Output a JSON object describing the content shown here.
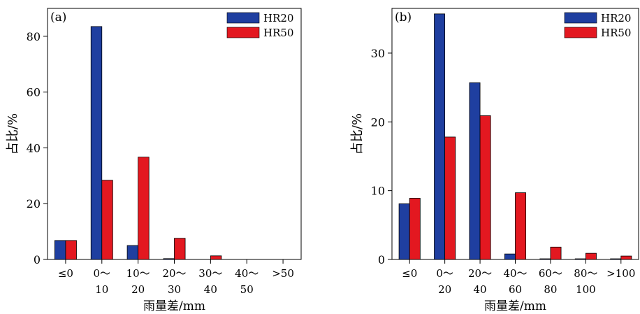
{
  "colors": {
    "HR20": "#1f3fa0",
    "HR50": "#e31820",
    "axis": "#000000"
  },
  "chart_data": [
    {
      "type": "bar",
      "panel_label": "(a)",
      "categories": [
        {
          "line1": "≤0",
          "line2": ""
        },
        {
          "line1": "0～",
          "line2": "10"
        },
        {
          "line1": "10～",
          "line2": "20"
        },
        {
          "line1": "20～",
          "line2": "30"
        },
        {
          "line1": "30～",
          "line2": "40"
        },
        {
          "line1": "40～",
          "line2": "50"
        },
        {
          "line1": ">50",
          "line2": ""
        }
      ],
      "series": [
        {
          "name": "HR20",
          "values": [
            6.8,
            83.5,
            5.0,
            0.3,
            0,
            0,
            0
          ]
        },
        {
          "name": "HR50",
          "values": [
            6.8,
            28.4,
            36.7,
            7.6,
            1.3,
            0,
            0
          ]
        }
      ],
      "xlabel": "雨量差/mm",
      "ylabel": "占比/%",
      "ylim": [
        0,
        90
      ],
      "yticks": [
        0,
        20,
        40,
        60,
        80
      ],
      "grid": false,
      "legend": "top-right"
    },
    {
      "type": "bar",
      "panel_label": "(b)",
      "categories": [
        {
          "line1": "≤0",
          "line2": ""
        },
        {
          "line1": "0～",
          "line2": "20"
        },
        {
          "line1": "20～",
          "line2": "40"
        },
        {
          "line1": "40～",
          "line2": "60"
        },
        {
          "line1": "60～",
          "line2": "80"
        },
        {
          "line1": "80～",
          "line2": "100"
        },
        {
          "line1": ">100",
          "line2": ""
        }
      ],
      "series": [
        {
          "name": "HR20",
          "values": [
            8.1,
            35.7,
            25.7,
            0.8,
            0.1,
            0.1,
            0.1
          ]
        },
        {
          "name": "HR50",
          "values": [
            8.9,
            17.8,
            20.9,
            9.7,
            1.8,
            0.9,
            0.5
          ]
        }
      ],
      "xlabel": "雨量差/mm",
      "ylabel": "占比/%",
      "ylim": [
        0,
        36.5
      ],
      "yticks": [
        0,
        10,
        20,
        30
      ],
      "grid": false,
      "legend": "top-right"
    }
  ]
}
